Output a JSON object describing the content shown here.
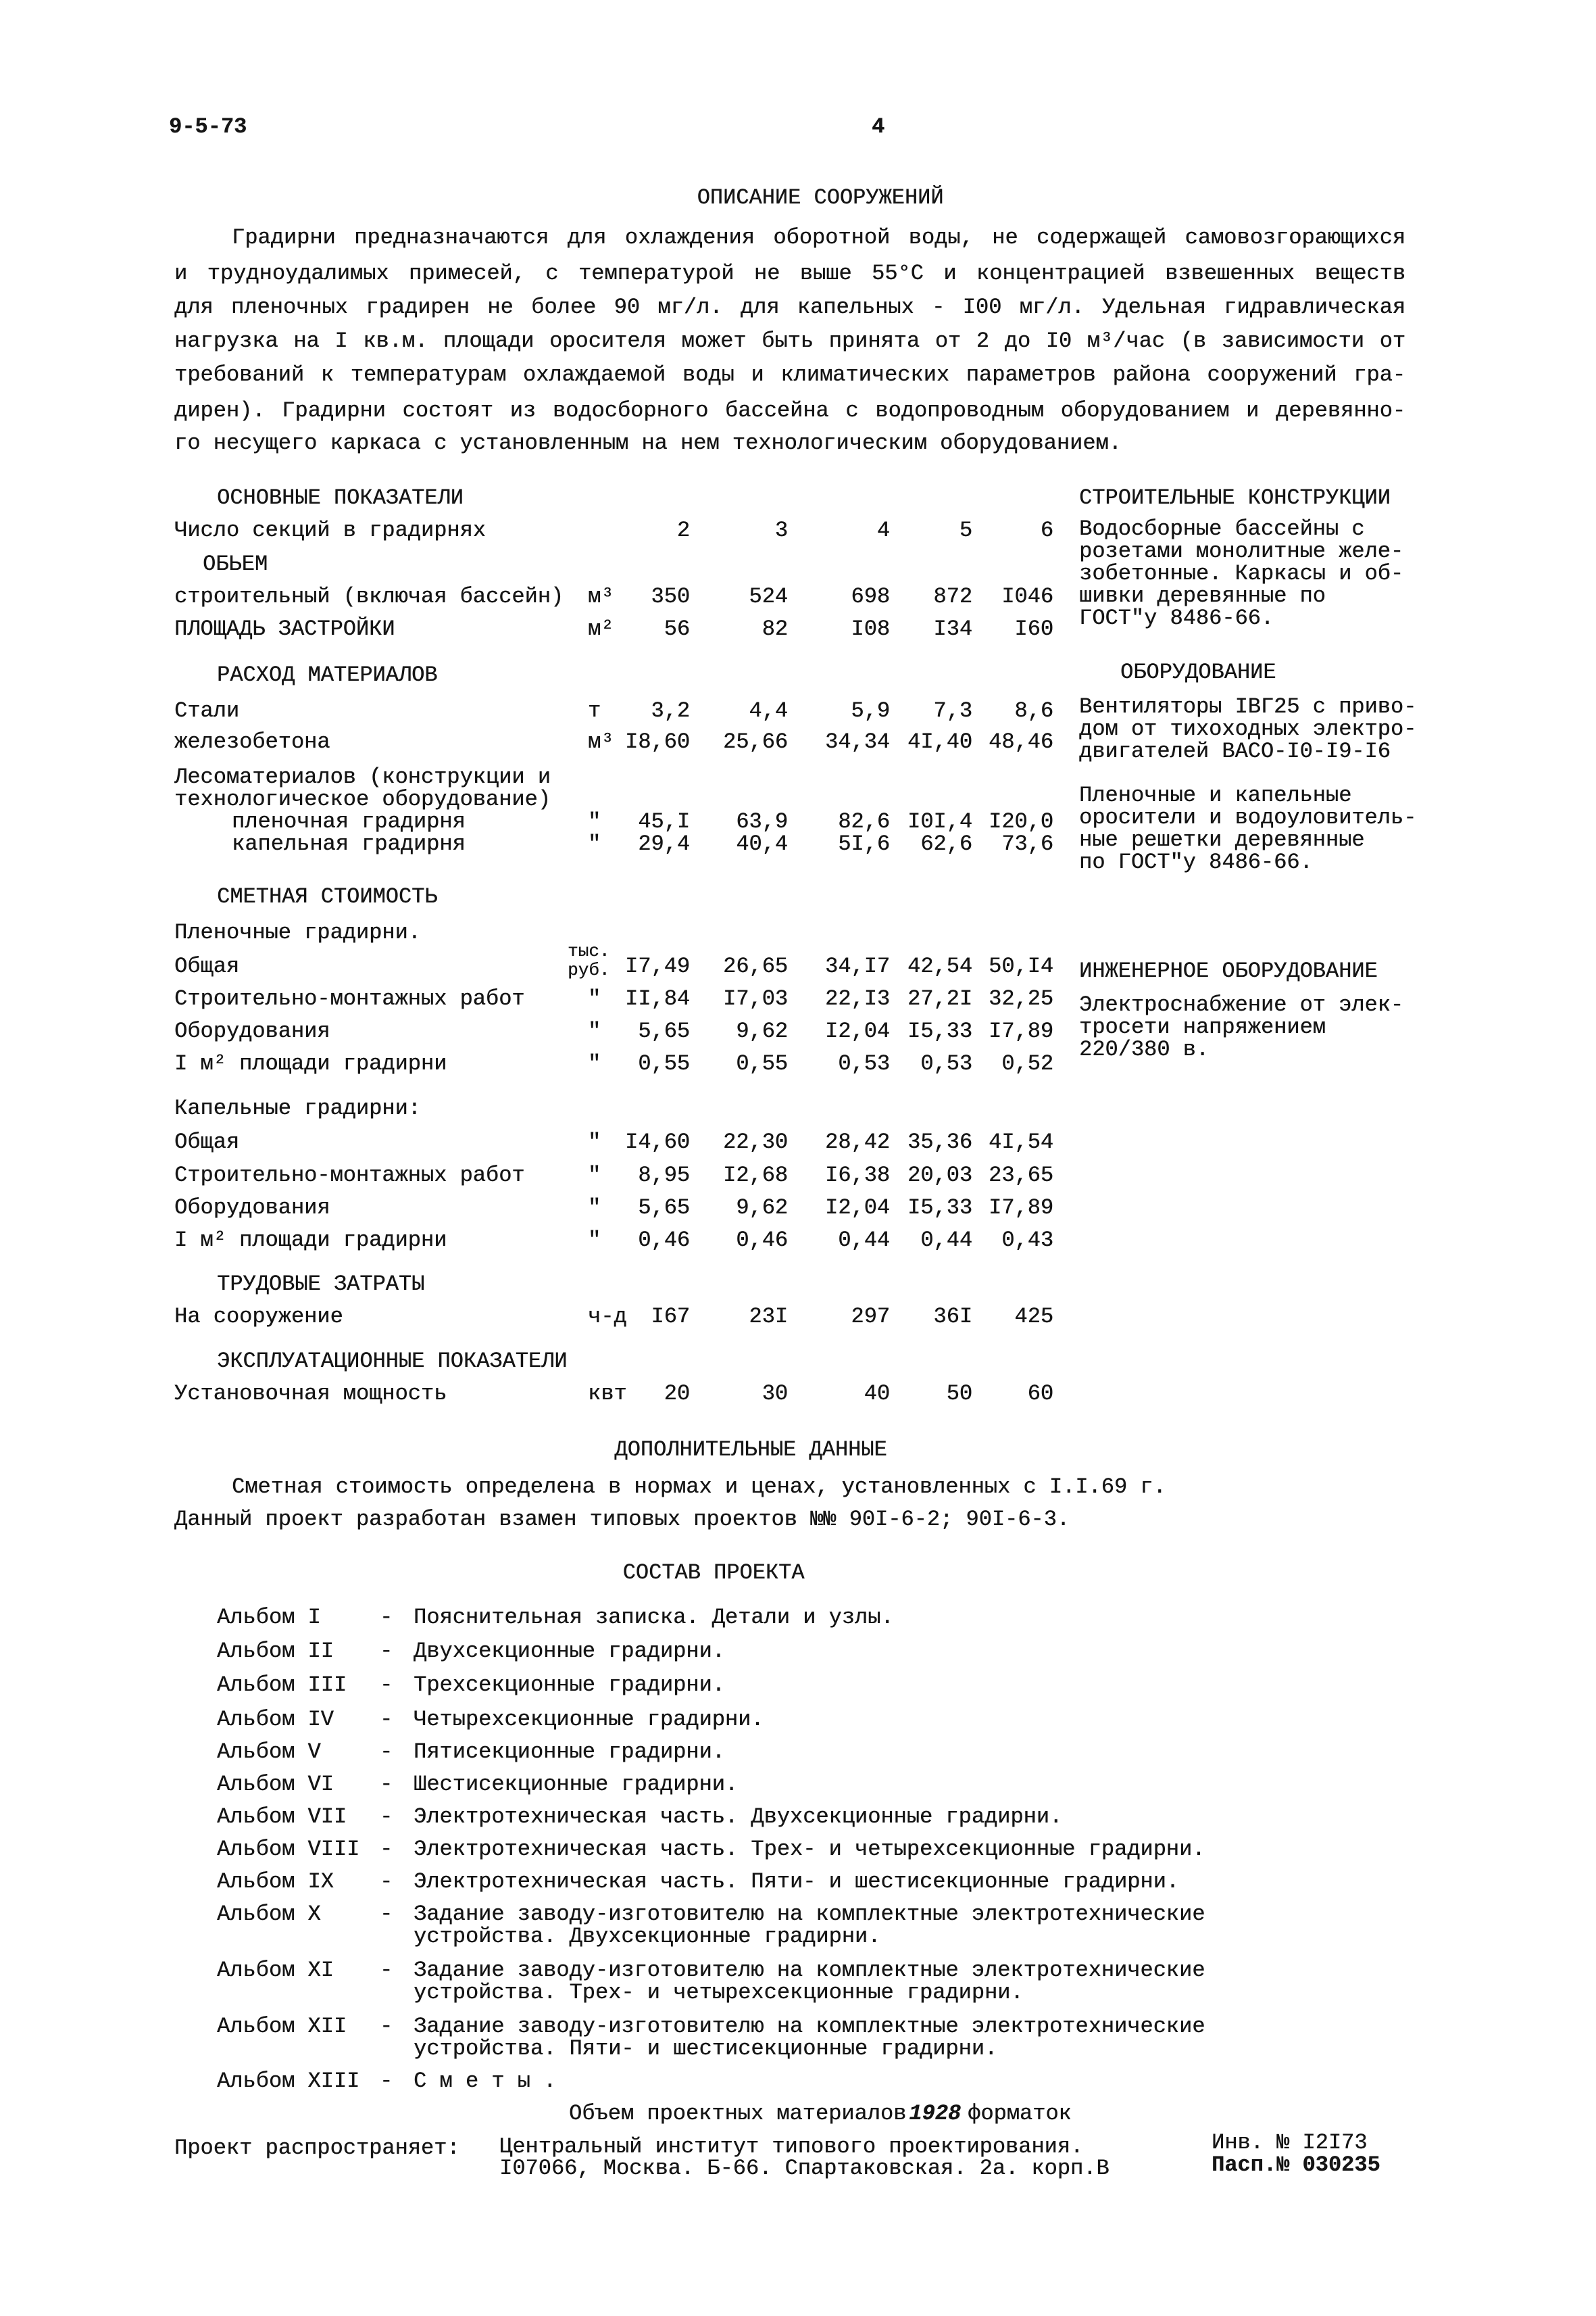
{
  "header": {
    "doc_code": "9-5-73",
    "page_number": "4"
  },
  "title": "ОПИСАНИЕ СООРУЖЕНИЙ",
  "intro_lines": [
    "Градирни предназначаются для охлаждения оборотной воды, не содержащей самовозгорающихся",
    "и трудноудалимых примесей, с температурой не выше 55°С и концентрацией взвешенных веществ",
    "для пленочных градирен не более 90 мг/л. для капельных - I00 мг/л. Удельная гидравлическая",
    "нагрузка на I кв.м. площади оросителя может быть принята от 2 до I0 м³/час (в зависимости от",
    "требований к температурам охлаждаемой воды и климатических параметров района сооружений гра-",
    "дирен). Градирни состоят из водосборного бассейна с водопроводным оборудованием и деревянно-",
    "го несущего каркаса с установленным на нем технологическим оборудованием."
  ],
  "indicators": {
    "heading_main": "ОСНОВНЫЕ ПОКАЗАТЕЛИ",
    "sections_label": "Число секций в градирнях",
    "sections": [
      "2",
      "3",
      "4",
      "5",
      "6"
    ],
    "heading_volume": "ОБЬЕМ",
    "rows_a": [
      {
        "label": "строительный (включая бассейн)",
        "unit": "м³",
        "values": [
          "350",
          "524",
          "698",
          "872",
          "I046"
        ]
      },
      {
        "label": "ПЛОЩАДЬ ЗАСТРОЙКИ",
        "unit": "м²",
        "values": [
          "56",
          "82",
          "I08",
          "I34",
          "I60"
        ]
      }
    ],
    "heading_materials": "РАСХОД МАТЕРИАЛОВ",
    "rows_b": [
      {
        "label": "Стали",
        "unit": "т",
        "values": [
          "3,2",
          "4,4",
          "5,9",
          "7,3",
          "8,6"
        ]
      },
      {
        "label": "железобетона",
        "unit": "м³",
        "values": [
          "I8,60",
          "25,66",
          "34,34",
          "4I,40",
          "48,46"
        ]
      }
    ],
    "timber_label_1": "Лесоматериалов (конструкции и",
    "timber_label_2": "технологическое оборудование)",
    "rows_c": [
      {
        "label": "пленочная градирня",
        "unit": "\"",
        "values": [
          "45,I",
          "63,9",
          "82,6",
          "I0I,4",
          "I20,0"
        ]
      },
      {
        "label": "капельная градирня",
        "unit": "\"",
        "values": [
          "29,4",
          "40,4",
          "5I,6",
          "62,6",
          "73,6"
        ]
      }
    ],
    "heading_cost": "СМЕТНАЯ СТОИМОСТЬ",
    "film_label": "Пленочные градирни.",
    "unit_thousand_rub_1": "тыс.",
    "unit_thousand_rub_2": "руб.",
    "rows_film": [
      {
        "label": "Общая",
        "unit": "",
        "values": [
          "I7,49",
          "26,65",
          "34,I7",
          "42,54",
          "50,I4"
        ]
      },
      {
        "label": "Строительно-монтажных работ",
        "unit": "\"",
        "values": [
          "II,84",
          "I7,03",
          "22,I3",
          "27,2I",
          "32,25"
        ]
      },
      {
        "label": "Оборудования",
        "unit": "\"",
        "values": [
          "5,65",
          "9,62",
          "I2,04",
          "I5,33",
          "I7,89"
        ]
      },
      {
        "label": "I м² площади градирни",
        "unit": "\"",
        "values": [
          "0,55",
          "0,55",
          "0,53",
          "0,53",
          "0,52"
        ]
      }
    ],
    "drip_label": "Капельные градирни:",
    "rows_drip": [
      {
        "label": "Общая",
        "unit": "\"",
        "values": [
          "I4,60",
          "22,30",
          "28,42",
          "35,36",
          "4I,54"
        ]
      },
      {
        "label": "Строительно-монтажных работ",
        "unit": "\"",
        "values": [
          "8,95",
          "I2,68",
          "I6,38",
          "20,03",
          "23,65"
        ]
      },
      {
        "label": "Оборудования",
        "unit": "\"",
        "values": [
          "5,65",
          "9,62",
          "I2,04",
          "I5,33",
          "I7,89"
        ]
      },
      {
        "label": "I м² площади градирни",
        "unit": "\"",
        "values": [
          "0,46",
          "0,46",
          "0,44",
          "0,44",
          "0,43"
        ]
      }
    ],
    "heading_labor": "ТРУДОВЫЕ ЗАТРАТЫ",
    "row_labor": {
      "label": "На сооружение",
      "unit": "ч-д",
      "values": [
        "I67",
        "23I",
        "297",
        "36I",
        "425"
      ]
    },
    "heading_operation": "ЭКСПЛУАТАЦИОННЫЕ ПОКАЗАТЕЛИ",
    "row_power": {
      "label": "Установочная мощность",
      "unit": "квт",
      "values": [
        "20",
        "30",
        "40",
        "50",
        "60"
      ]
    }
  },
  "right_column": {
    "structures_heading": "СТРОИТЕЛЬНЫЕ КОНСТРУКЦИИ",
    "structures_lines": [
      "Водосборные бассейны с",
      "розетами монолитные желе-",
      "зобетонные. Каркасы и об-",
      "шивки деревянные по",
      "ГОСТ\"у 8486-66."
    ],
    "equipment_heading": "ОБОРУДОВАНИЕ",
    "equipment_lines_1": [
      "Вентиляторы IВГ25 с приво-",
      "дом от тихоходных электро-",
      "двигателей ВАСО-I0-I9-I6"
    ],
    "equipment_lines_2": [
      "Пленочные и капельные",
      "оросители и водоуловитель-",
      "ные решетки деревянные",
      "по ГОСТ\"у 8486-66."
    ],
    "engineering_heading": "ИНЖЕНЕРНОЕ ОБОРУДОВАНИЕ",
    "engineering_lines": [
      "Электроснабжение от элек-",
      "тросети напряжением",
      "220/380 в."
    ]
  },
  "additional": {
    "heading": "ДОПОЛНИТЕЛЬНЫЕ ДАННЫЕ",
    "line_1": "Сметная стоимость определена в нормах и ценах, установленных с I.I.69 г.",
    "line_2": "Данный проект разработан взамен типовых проектов №№ 90I-6-2; 90I-6-3."
  },
  "composition": {
    "heading": "СОСТАВ ПРОЕКТА",
    "albums": [
      {
        "label": "Альбом I",
        "text": [
          "Пояснительная записка. Детали и узлы."
        ]
      },
      {
        "label": "Альбом II",
        "text": [
          "Двухсекционные градирни."
        ]
      },
      {
        "label": "Альбом III",
        "text": [
          "Трехсекционные градирни."
        ]
      },
      {
        "label": "Альбом IV",
        "text": [
          "Четырехсекционные градирни."
        ]
      },
      {
        "label": "Альбом V",
        "text": [
          "Пятисекционные градирни."
        ]
      },
      {
        "label": "Альбом VI",
        "text": [
          "Шестисекционные градирни."
        ]
      },
      {
        "label": "Альбом VII",
        "text": [
          "Электротехническая часть. Двухсекционные градирни."
        ]
      },
      {
        "label": "Альбом VIII",
        "text": [
          "Электротехническая часть. Трех- и четырехсекционные градирни."
        ]
      },
      {
        "label": "Альбом IX",
        "text": [
          "Электротехническая часть. Пяти- и шестисекционные градирни."
        ]
      },
      {
        "label": "Альбом X",
        "text": [
          "Задание заводу-изготовителю на комплектные электротехнические",
          "устройства. Двухсекционные градирни."
        ]
      },
      {
        "label": "Альбом XI",
        "text": [
          "Задание заводу-изготовителю на комплектные электротехнические",
          "устройства. Трех- и четырехсекционные градирни."
        ]
      },
      {
        "label": "Альбом XII",
        "text": [
          "Задание заводу-изготовителю на комплектные электротехнические",
          "устройства. Пяти- и шестисекционные градирни."
        ]
      },
      {
        "label": "Альбом XIII",
        "text": [
          "С м е т ы ."
        ]
      }
    ],
    "dash": "-",
    "volume_text": "Объем проектных материалов",
    "volume_count": "1928",
    "volume_unit": "форматок"
  },
  "footer": {
    "distributor_label": "Проект распространяет:",
    "distributor_line_1": "Центральный институт типового проектирования.",
    "distributor_line_2": "I07066, Москва. Б-66. Спартаковская. 2а. корп.В",
    "inventory": "Инв. № I2I73",
    "passport": "Пасп.№ 030235"
  }
}
